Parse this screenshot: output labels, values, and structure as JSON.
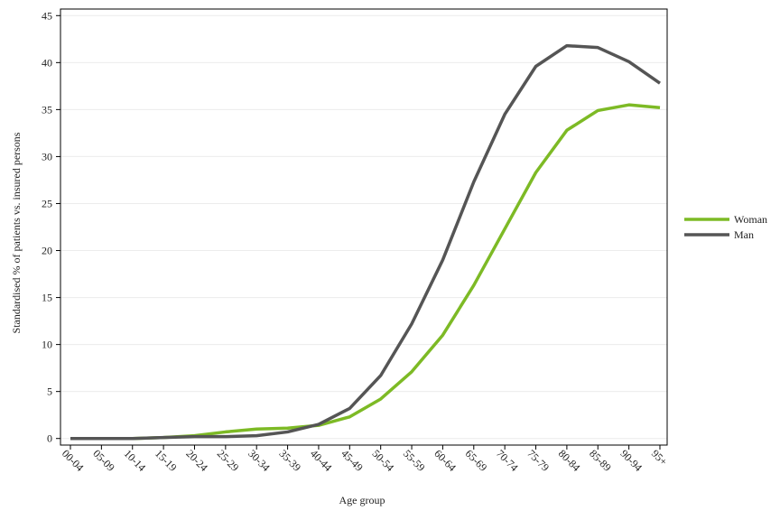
{
  "chart_data": {
    "type": "line",
    "x_label": "Age group",
    "y_label": "Standardised % of patients vs. insured persons",
    "categories": [
      "00-04",
      "05-09",
      "10-14",
      "15-19",
      "20-24",
      "25-29",
      "30-34",
      "35-39",
      "40-44",
      "45-49",
      "50-54",
      "55-59",
      "60-64",
      "65-69",
      "70-74",
      "75-79",
      "80-84",
      "85-89",
      "90-94",
      "95+"
    ],
    "series": [
      {
        "name": "Woman",
        "color": "#7dba25",
        "values": [
          0,
          0,
          0,
          0.1,
          0.3,
          0.7,
          1.0,
          1.1,
          1.4,
          2.3,
          4.2,
          7.1,
          11.0,
          16.3,
          22.3,
          28.3,
          32.8,
          34.9,
          35.5,
          35.2
        ]
      },
      {
        "name": "Man",
        "color": "#555555",
        "values": [
          0,
          0,
          0,
          0.1,
          0.2,
          0.2,
          0.3,
          0.7,
          1.5,
          3.2,
          6.7,
          12.2,
          19.0,
          27.3,
          34.5,
          39.6,
          41.8,
          41.6,
          40.1,
          37.8
        ]
      }
    ],
    "ylim": [
      -0.7,
      45.7
    ],
    "yticks": [
      0,
      5,
      10,
      15,
      20,
      25,
      30,
      35,
      40,
      45
    ],
    "grid": true,
    "legend": "right"
  }
}
